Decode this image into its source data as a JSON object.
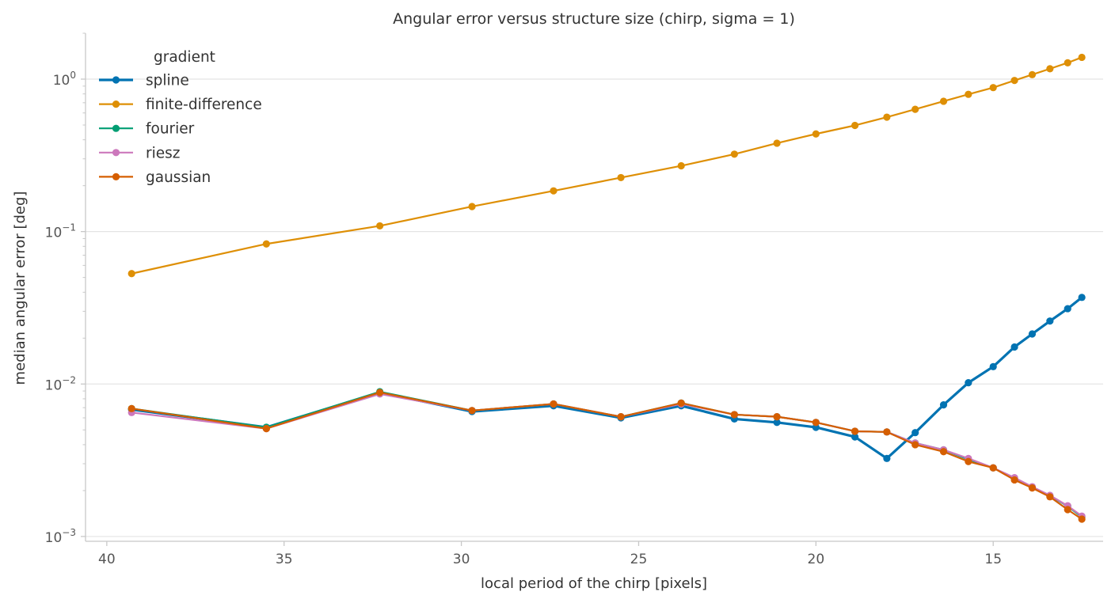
{
  "chart_data": {
    "type": "line",
    "title": "Angular error versus structure size (chirp, sigma = 1)",
    "xlabel": "local period of the chirp [pixels]",
    "ylabel": "median angular error [deg]",
    "x_inverted": true,
    "xlim": [
      40.6,
      11.9
    ],
    "x_ticks": [
      40,
      35,
      30,
      25,
      20,
      15
    ],
    "y_scale": "log",
    "ylim": [
      0.00093,
      2.0
    ],
    "y_ticks": [
      {
        "value": 1,
        "base": "10",
        "exp": "0"
      },
      {
        "value": 0.1,
        "base": "10",
        "exp": "−1"
      },
      {
        "value": 0.01,
        "base": "10",
        "exp": "−2"
      },
      {
        "value": 0.001,
        "base": "10",
        "exp": "−3"
      }
    ],
    "grid": "y-major",
    "legend": {
      "title": "gradient",
      "placement": "top-left"
    },
    "x": [
      39.3,
      35.5,
      32.3,
      29.7,
      27.4,
      25.5,
      23.8,
      22.3,
      21.1,
      20.0,
      18.9,
      18.0,
      17.2,
      16.4,
      15.7,
      15.0,
      14.4,
      13.9,
      13.4,
      12.9,
      12.5
    ],
    "series": [
      {
        "name": "spline",
        "color": "#0173b2",
        "width": 3.2,
        "values": [
          0.0068,
          0.0052,
          0.0088,
          0.0066,
          0.0072,
          0.006,
          0.0072,
          0.0059,
          0.0056,
          0.0052,
          0.0045,
          0.00325,
          0.0048,
          0.0073,
          0.0102,
          0.013,
          0.0175,
          0.0213,
          0.0259,
          0.0312,
          0.037
        ]
      },
      {
        "name": "finite-difference",
        "color": "#de8f05",
        "width": 2.2,
        "values": [
          0.053,
          0.083,
          0.109,
          0.146,
          0.185,
          0.226,
          0.27,
          0.322,
          0.38,
          0.437,
          0.497,
          0.563,
          0.634,
          0.716,
          0.795,
          0.88,
          0.98,
          1.07,
          1.17,
          1.28,
          1.39
        ]
      },
      {
        "name": "fourier",
        "color": "#029e73",
        "width": 2.2,
        "values": [
          0.0069,
          0.0052,
          0.0089,
          0.0067,
          0.0074,
          0.0061,
          0.0075,
          0.0063,
          0.0061,
          0.0056,
          0.0049,
          0.00485,
          0.0041,
          0.0037,
          0.0032,
          0.00282,
          0.0024,
          0.0021,
          0.00185,
          0.00158,
          0.00134
        ]
      },
      {
        "name": "riesz",
        "color": "#cc78bc",
        "width": 2.2,
        "values": [
          0.0065,
          0.0051,
          0.0086,
          0.0067,
          0.0074,
          0.0061,
          0.0074,
          0.0063,
          0.0061,
          0.0056,
          0.0049,
          0.00485,
          0.0041,
          0.0037,
          0.00325,
          0.00282,
          0.00243,
          0.00212,
          0.00186,
          0.00159,
          0.00136
        ]
      },
      {
        "name": "gaussian",
        "color": "#d55e00",
        "width": 2.2,
        "values": [
          0.0069,
          0.0051,
          0.0088,
          0.0067,
          0.0074,
          0.0061,
          0.0075,
          0.0063,
          0.0061,
          0.0056,
          0.0049,
          0.00485,
          0.004,
          0.0036,
          0.0031,
          0.00282,
          0.00235,
          0.00208,
          0.00182,
          0.0015,
          0.0013
        ]
      }
    ]
  }
}
